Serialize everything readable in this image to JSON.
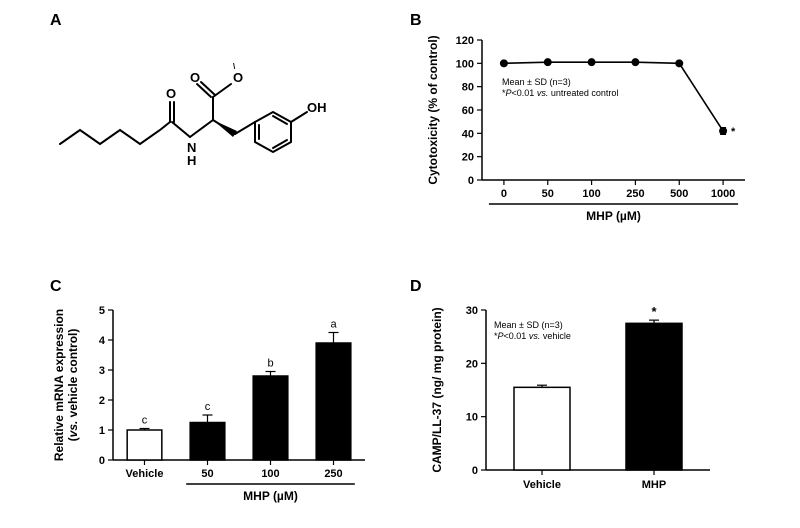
{
  "labels": {
    "A": "A",
    "B": "B",
    "C": "C",
    "D": "D"
  },
  "colors": {
    "black": "#000000",
    "white": "#ffffff",
    "axis": "#000000"
  },
  "panelB": {
    "type": "line",
    "title_y": "Cytotoxicity (% of control)",
    "x_title": "MHP (µM)",
    "categories": [
      "0",
      "50",
      "100",
      "250",
      "500",
      "1000"
    ],
    "values": [
      100,
      101,
      101,
      101,
      100,
      42
    ],
    "sd": [
      1,
      1.5,
      1.5,
      1.5,
      1,
      3
    ],
    "sig_marks": [
      "",
      "",
      "",
      "",
      "",
      "*"
    ],
    "ylim": [
      0,
      120
    ],
    "ytick_step": 20,
    "marker_size": 5,
    "line_width": 1.6,
    "line_color": "#000000",
    "marker_color": "#000000",
    "annot_lines": [
      "Mean ± SD (n=3)",
      "*P<0.01 vs. untreated control"
    ],
    "axis_color": "#000000",
    "tick_fontsize": 11,
    "label_fontsize": 12
  },
  "panelC": {
    "type": "bar",
    "title_y": "Relative mRNA expression\n(vs. vehicle control)",
    "x_title": "MHP (µM)",
    "categories": [
      "Vehicle",
      "50",
      "100",
      "250"
    ],
    "values": [
      1.0,
      1.25,
      2.8,
      3.9
    ],
    "sd": [
      0.05,
      0.25,
      0.15,
      0.35
    ],
    "sig_letters": [
      "c",
      "c",
      "b",
      "a"
    ],
    "bar_colors": [
      "#ffffff",
      "#000000",
      "#000000",
      "#000000"
    ],
    "bar_border": "#000000",
    "ylim": [
      0,
      5
    ],
    "ytick_step": 1,
    "bar_width": 0.55,
    "axis_color": "#000000",
    "tick_fontsize": 11,
    "label_fontsize": 12
  },
  "panelD": {
    "type": "bar",
    "title_y": "CAMP/LL-37 (ng/ mg protein)",
    "categories": [
      "Vehicle",
      "MHP"
    ],
    "values": [
      15.5,
      27.5
    ],
    "sd": [
      0.4,
      0.6
    ],
    "sig_marks": [
      "",
      "*"
    ],
    "bar_colors": [
      "#ffffff",
      "#000000"
    ],
    "bar_border": "#000000",
    "ylim": [
      0,
      30
    ],
    "ytick_step": 10,
    "bar_width": 0.5,
    "annot_lines": [
      "Mean ± SD (n=3)",
      "*P<0.01 vs. vehicle"
    ],
    "axis_color": "#000000",
    "tick_fontsize": 11,
    "label_fontsize": 12
  }
}
